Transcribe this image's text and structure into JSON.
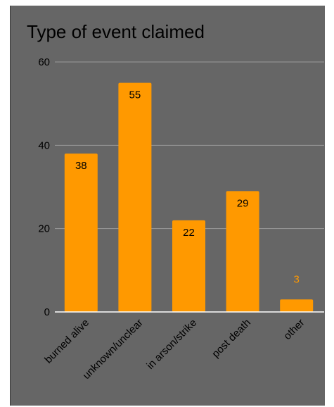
{
  "chart_data": {
    "type": "bar",
    "title": "Type of event claimed",
    "categories": [
      "burned alive",
      "unknown/unclear",
      "in arson/strike",
      "post death",
      "other"
    ],
    "values": [
      38,
      55,
      22,
      29,
      3
    ],
    "ylim": [
      0,
      60
    ],
    "yticks": [
      0,
      20,
      40,
      60
    ],
    "xlabel": "",
    "ylabel": "",
    "grid": true,
    "colors": {
      "bar": "#ff9900",
      "background": "#666666",
      "gridline": "#9a9a9a",
      "baseline": "#ffffff",
      "inside_label": "#000000",
      "outside_label": "#ff9900",
      "tick_label": "#000000"
    }
  }
}
